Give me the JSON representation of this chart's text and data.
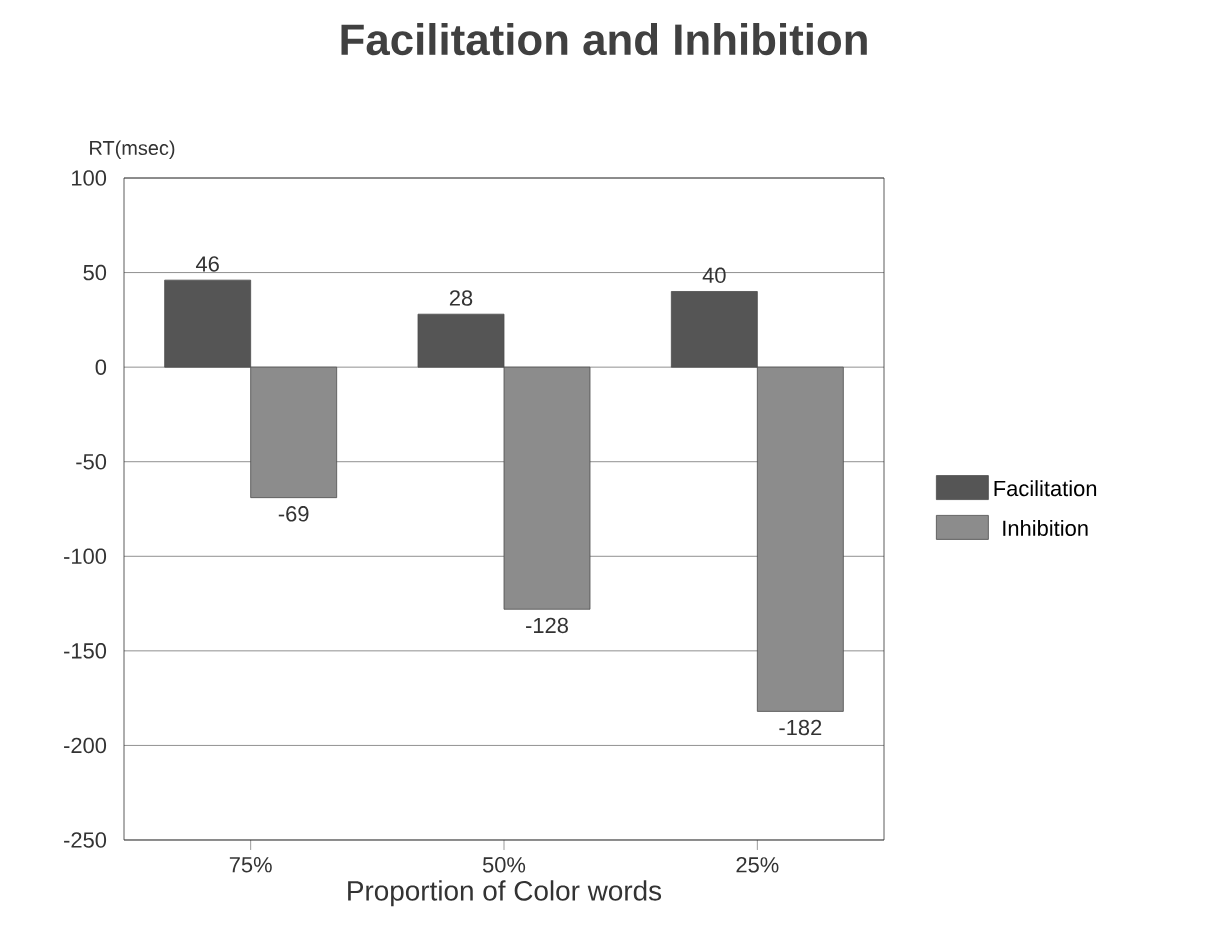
{
  "chart_data": {
    "type": "bar",
    "title": "Facilitation and Inhibition",
    "xlabel": "Proportion of Color words",
    "ylabel": "RT(msec)",
    "categories": [
      "75%",
      "50%",
      "25%"
    ],
    "series": [
      {
        "name": "Facilitation",
        "color": "#555555",
        "values": [
          46,
          28,
          40
        ]
      },
      {
        "name": "Inhibition",
        "color": "#8c8c8c",
        "values": [
          -69,
          -128,
          -182
        ]
      }
    ],
    "ylim": [
      -250,
      100
    ],
    "yticks": [
      -250,
      -200,
      -150,
      -100,
      -50,
      0,
      50,
      100
    ],
    "grid": "y",
    "legend": "right",
    "data_labels": true
  }
}
